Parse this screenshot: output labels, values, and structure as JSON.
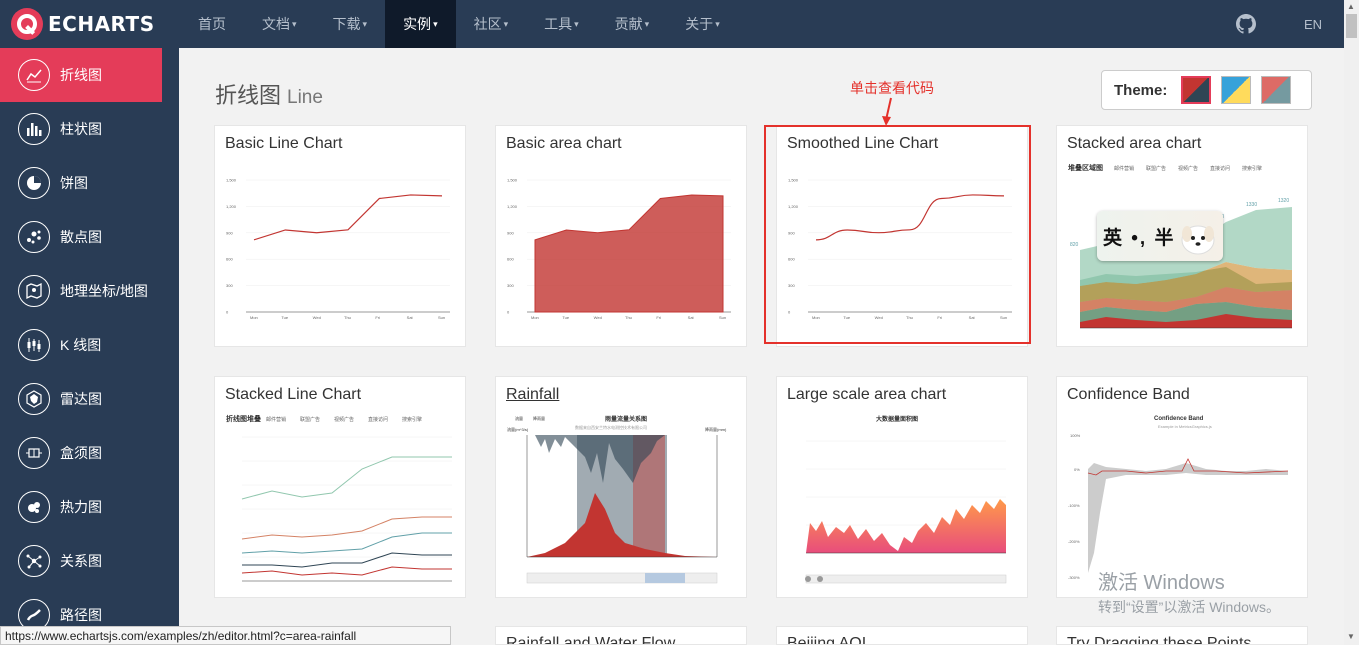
{
  "logo": {
    "text": "ECHARTS"
  },
  "nav": {
    "items": [
      {
        "label": "首页",
        "caret": false
      },
      {
        "label": "文档",
        "caret": true
      },
      {
        "label": "下载",
        "caret": true
      },
      {
        "label": "实例",
        "caret": true,
        "active": true
      },
      {
        "label": "社区",
        "caret": true
      },
      {
        "label": "工具",
        "caret": true
      },
      {
        "label": "贡献",
        "caret": true
      },
      {
        "label": "关于",
        "caret": true
      }
    ],
    "lang": "EN"
  },
  "sidebar": {
    "items": [
      {
        "label": "折线图",
        "icon": "line-chart-icon",
        "active": true
      },
      {
        "label": "柱状图",
        "icon": "bar-chart-icon"
      },
      {
        "label": "饼图",
        "icon": "pie-chart-icon"
      },
      {
        "label": "散点图",
        "icon": "scatter-icon"
      },
      {
        "label": "地理坐标/地图",
        "icon": "map-icon"
      },
      {
        "label": "K 线图",
        "icon": "candlestick-icon"
      },
      {
        "label": "雷达图",
        "icon": "radar-icon"
      },
      {
        "label": "盒须图",
        "icon": "boxplot-icon"
      },
      {
        "label": "热力图",
        "icon": "heatmap-icon"
      },
      {
        "label": "关系图",
        "icon": "graph-icon"
      },
      {
        "label": "路径图",
        "icon": "lines-icon"
      }
    ]
  },
  "page": {
    "title": "折线图",
    "subtitle": "Line",
    "hint": "单击查看代码"
  },
  "theme": {
    "label": "Theme:"
  },
  "cards": [
    {
      "title": "Basic Line Chart"
    },
    {
      "title": "Basic area chart"
    },
    {
      "title": "Smoothed Line Chart"
    },
    {
      "title": "Stacked area chart"
    },
    {
      "title": "Stacked Line Chart"
    },
    {
      "title": "Rainfall"
    },
    {
      "title": "Large scale area chart"
    },
    {
      "title": "Confidence Band"
    }
  ],
  "partial_cards": [
    {
      "title": "Rainfall and Water Flow"
    },
    {
      "title": "Beijing AQI"
    },
    {
      "title": "Try Dragging these Points"
    }
  ],
  "thumbs": {
    "basic": {
      "yticks": [
        "1,500",
        "1,200",
        "900",
        "600",
        "300",
        "0"
      ],
      "days": [
        "Mon",
        "Tue",
        "Wed",
        "Thu",
        "Fri",
        "Sat",
        "Sun"
      ],
      "values": [
        820,
        932,
        901,
        934,
        1290,
        1330,
        1320
      ]
    },
    "stacked_area": {
      "title": "堆叠区域图",
      "legend": [
        "邮件营销",
        "联盟广告",
        "视频广告",
        "直接访问",
        "搜索引擎"
      ],
      "labels": [
        "820",
        "1290",
        "1330",
        "1320"
      ]
    },
    "stacked_line": {
      "title": "折线图堆叠",
      "legend": [
        "邮件营销",
        "联盟广告",
        "视频广告",
        "直接访问",
        "搜索引擎"
      ]
    },
    "rainfall": {
      "title": "雨量流量关系图",
      "subtitle": "数据来自西安兰特水电测控技术有限公司",
      "legend": [
        "流量",
        "降雨量"
      ],
      "yleft": "流量(m^3/s)",
      "yright": "降雨量(mm)"
    },
    "large_area": {
      "title": "大数据量面积图"
    },
    "confidence": {
      "title": "Confidence Band",
      "subtitle": "Example in MetricsGraphics.js",
      "yticks": [
        "100%",
        "0%",
        "-100%",
        "-200%",
        "-300%"
      ]
    }
  },
  "overlay": {
    "text": "英 •, 半"
  },
  "status": {
    "url": "https://www.echartsjs.com/examples/zh/editor.html?c=area-rainfall"
  },
  "watermark": {
    "line1": "激活 Windows",
    "line2": "转到“设置”以激活 Windows。"
  },
  "colors": {
    "topbar": "#293c55",
    "accent": "#e43c59",
    "hint": "#e4312b",
    "series": "#c23531"
  }
}
